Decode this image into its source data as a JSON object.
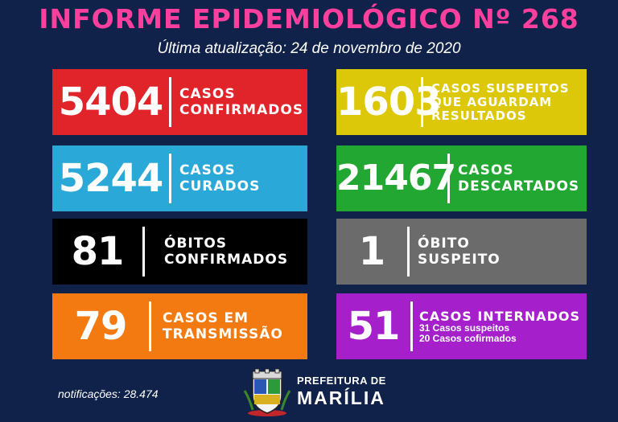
{
  "header": {
    "title": "INFORME EPIDEMIOLÓGICO Nº 268",
    "subtitle": "Última atualização: 24 de novembro de 2020"
  },
  "cards": {
    "confirmed": {
      "value": "5404",
      "label": "CASOS\nCONFIRMADOS",
      "color": "#e0242a"
    },
    "suspected": {
      "value": "1603",
      "label": "CASOS SUSPEITOS\nQUE AGUARDAM\nRESULTADOS",
      "color": "#dcc808"
    },
    "cured": {
      "value": "5244",
      "label": "CASOS\nCURADOS",
      "color": "#2aa9d8"
    },
    "discarded": {
      "value": "21467",
      "label": "CASOS\nDESCARTADOS",
      "color": "#22a732"
    },
    "deaths": {
      "value": "81",
      "label": "ÓBITOS\nCONFIRMADOS",
      "color": "#000000"
    },
    "suspect_death": {
      "value": "1",
      "label": "ÓBITO\nSUSPEITO",
      "color": "#6b6b6b"
    },
    "transmission": {
      "value": "79",
      "label": "CASOS EM\nTRANSMISSÃO",
      "color": "#f27a10"
    },
    "hospitalized": {
      "value": "51",
      "label": "CASOS INTERNADOS",
      "detail": "31 Casos suspeitos\n20 Casos cofirmados",
      "color": "#a51fcb"
    }
  },
  "footer": {
    "notifications": "notificações: 28.474",
    "prefeitura": "PREFEITURA DE",
    "city": "MARÍLIA"
  }
}
